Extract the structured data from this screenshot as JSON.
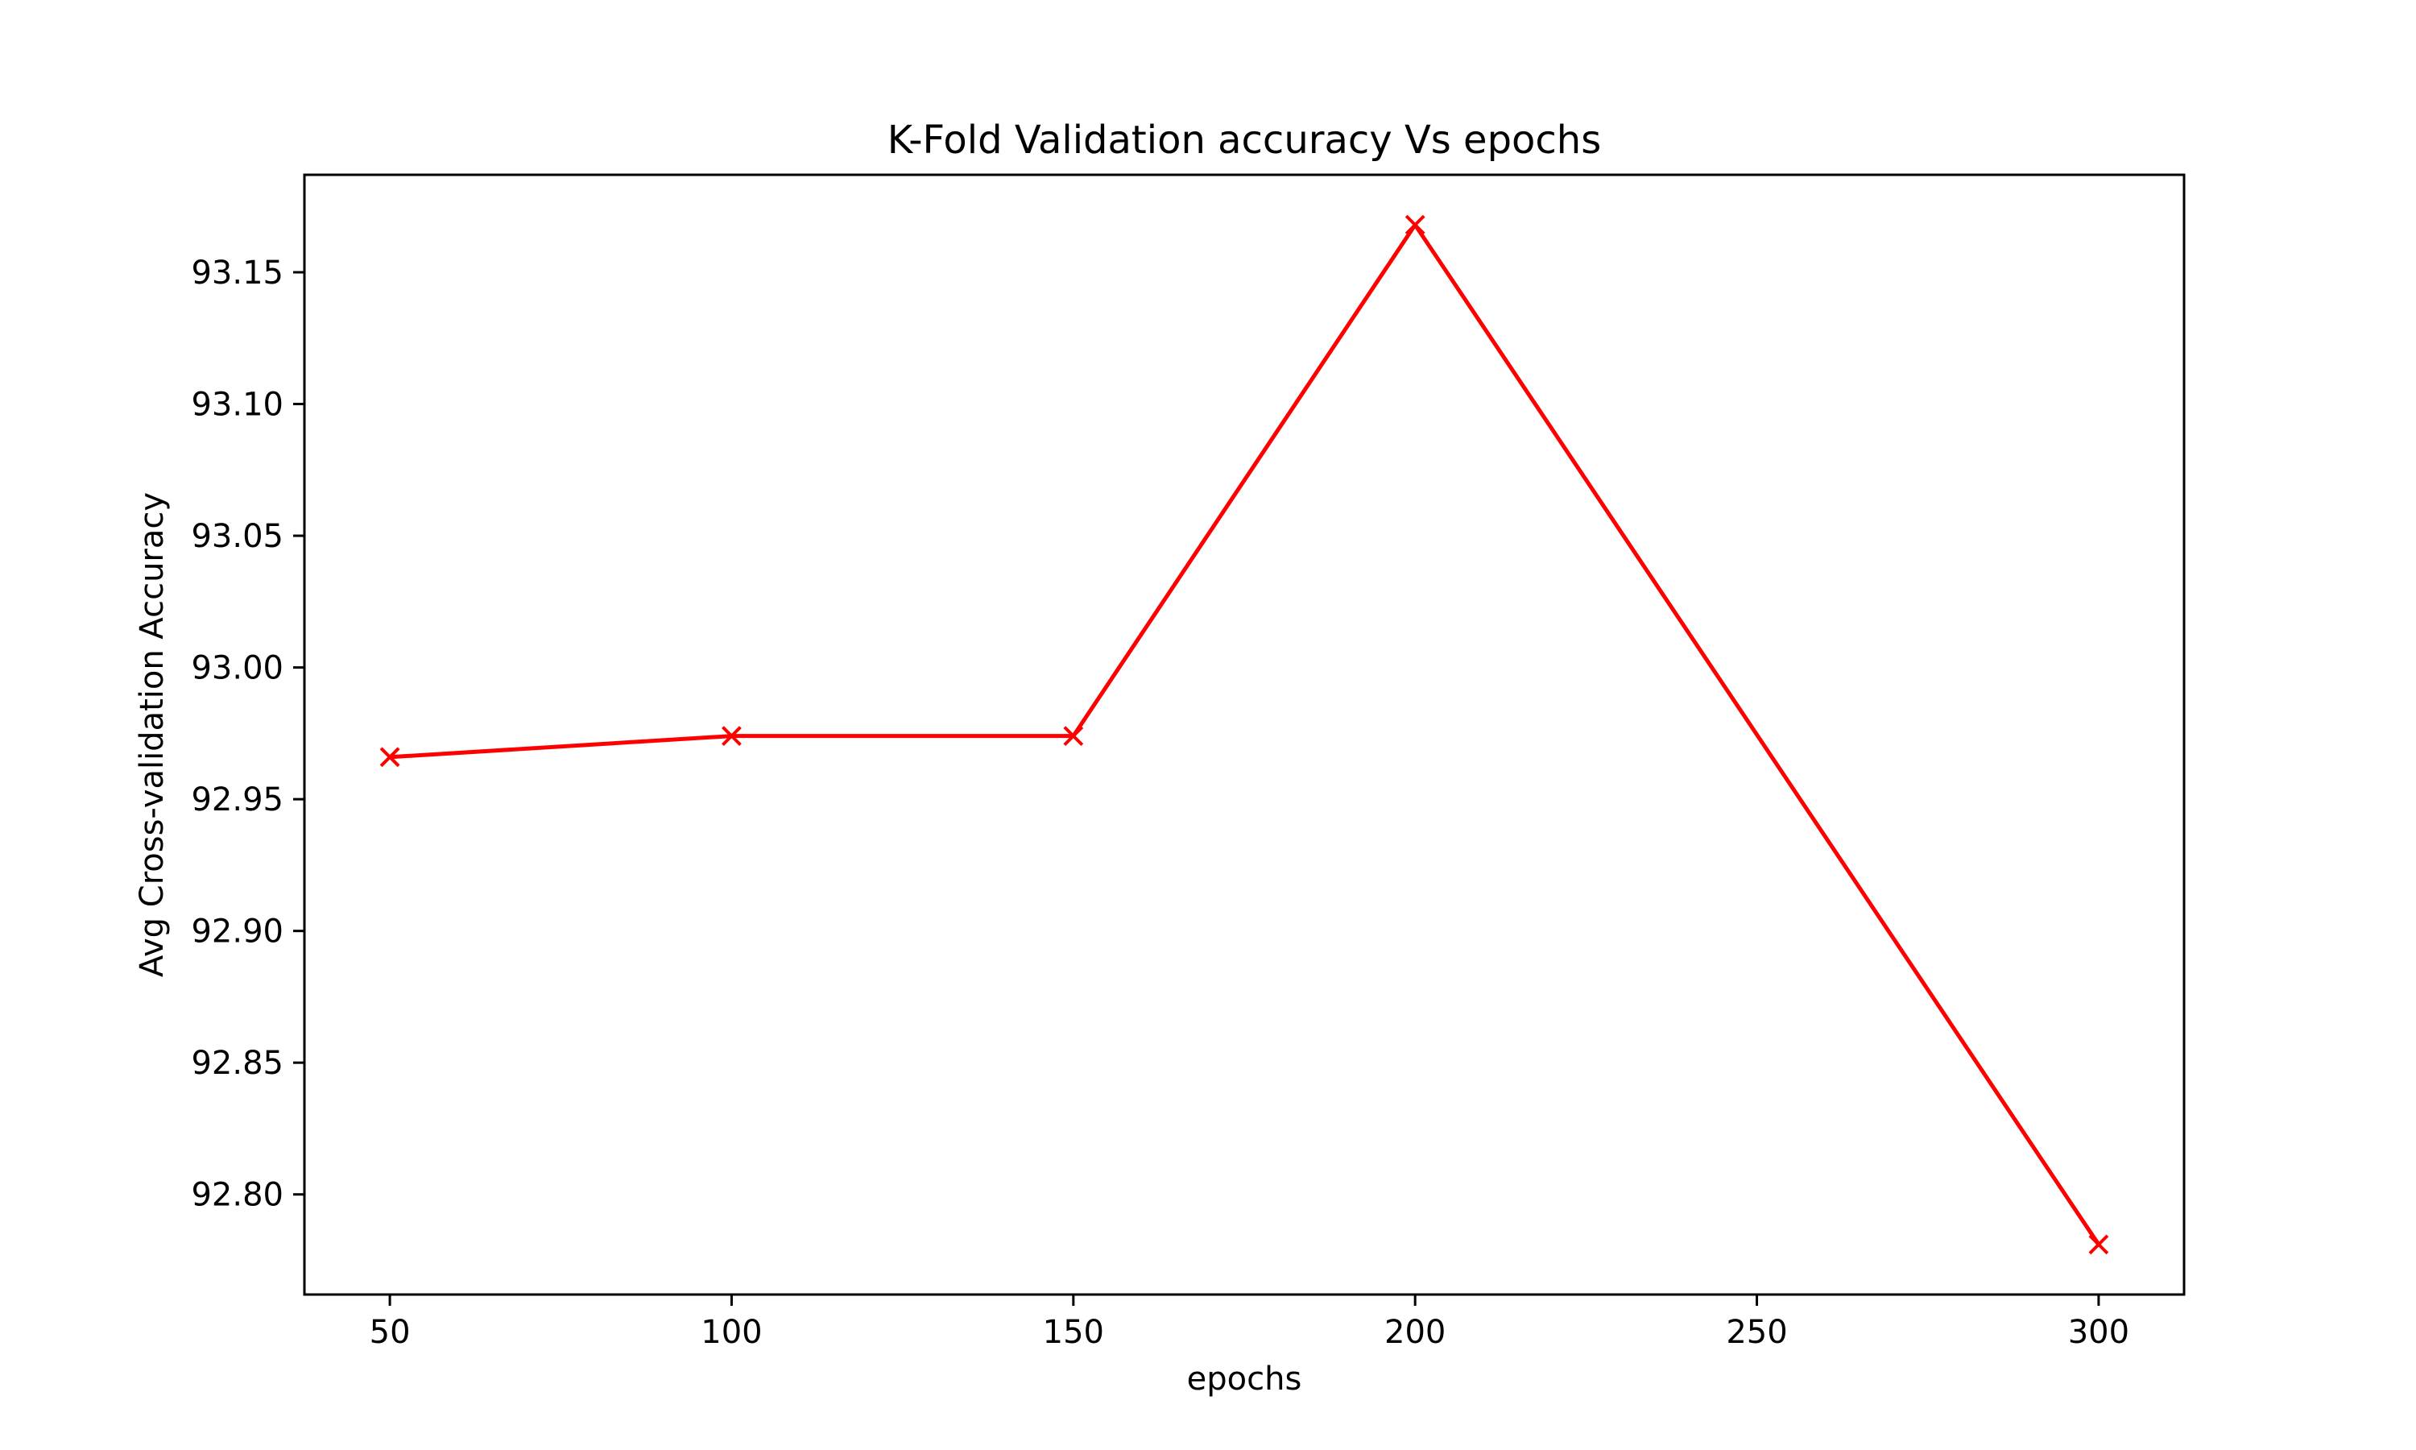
{
  "chart_data": {
    "type": "line",
    "title": "K-Fold Validation accuracy Vs epochs",
    "xlabel": "epochs",
    "ylabel": "Avg Cross-validation Accuracy",
    "x": [
      50,
      100,
      150,
      200,
      250,
      300
    ],
    "xticks": [
      "50",
      "100",
      "150",
      "200",
      "250",
      "300"
    ],
    "yticks": [
      "92.80",
      "92.85",
      "92.90",
      "92.95",
      "93.00",
      "93.05",
      "93.10",
      "93.15"
    ],
    "xlim": [
      37.5,
      312.5
    ],
    "ylim": [
      92.762,
      93.187
    ],
    "grid": false,
    "series": [
      {
        "x": [
          50,
          100,
          150,
          200,
          300
        ],
        "values": [
          92.966,
          92.974,
          92.974,
          93.168,
          92.781
        ],
        "color": "#ff0000",
        "marker": "x"
      }
    ]
  }
}
